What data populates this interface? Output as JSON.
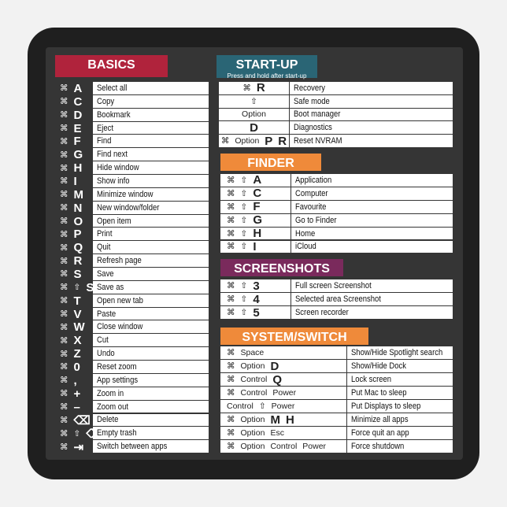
{
  "sections": [
    {
      "title": "BASICS",
      "rows": [
        {
          "keys": [
            "⌘",
            "A"
          ],
          "action": "Select all"
        },
        {
          "keys": [
            "⌘",
            "C"
          ],
          "action": "Copy"
        },
        {
          "keys": [
            "⌘",
            "D"
          ],
          "action": "Bookmark"
        },
        {
          "keys": [
            "⌘",
            "E"
          ],
          "action": "Eject"
        },
        {
          "keys": [
            "⌘",
            "F"
          ],
          "action": "Find"
        },
        {
          "keys": [
            "⌘",
            "G"
          ],
          "action": "Find next"
        },
        {
          "keys": [
            "⌘",
            "H"
          ],
          "action": "Hide window"
        },
        {
          "keys": [
            "⌘",
            "I"
          ],
          "action": "Show info"
        },
        {
          "keys": [
            "⌘",
            "M"
          ],
          "action": "Minimize window"
        },
        {
          "keys": [
            "⌘",
            "N"
          ],
          "action": "New window/folder"
        },
        {
          "keys": [
            "⌘",
            "O"
          ],
          "action": "Open item"
        },
        {
          "keys": [
            "⌘",
            "P"
          ],
          "action": "Print"
        },
        {
          "keys": [
            "⌘",
            "Q"
          ],
          "action": "Quit"
        },
        {
          "keys": [
            "⌘",
            "R"
          ],
          "action": "Refresh page"
        },
        {
          "keys": [
            "⌘",
            "S"
          ],
          "action": "Save"
        },
        {
          "keys": [
            "⌘",
            "⇧",
            "S"
          ],
          "action": "Save as"
        },
        {
          "keys": [
            "⌘",
            "T"
          ],
          "action": "Open new tab"
        },
        {
          "keys": [
            "⌘",
            "V"
          ],
          "action": "Paste"
        },
        {
          "keys": [
            "⌘",
            "W"
          ],
          "action": "Close window"
        },
        {
          "keys": [
            "⌘",
            "X"
          ],
          "action": "Cut"
        },
        {
          "keys": [
            "⌘",
            "Z"
          ],
          "action": "Undo"
        },
        {
          "keys": [
            "⌘",
            "0"
          ],
          "action": "Reset zoom"
        },
        {
          "keys": [
            "⌘",
            ","
          ],
          "action": "App settings"
        },
        {
          "keys": [
            "⌘",
            "+"
          ],
          "action": "Zoom in"
        },
        {
          "keys": [
            "⌘",
            "–"
          ],
          "action": "Zoom out"
        },
        {
          "keys": [
            "⌘",
            "⌫"
          ],
          "action": "Delete"
        },
        {
          "keys": [
            "⌘",
            "⇧",
            "⌫"
          ],
          "action": "Empty trash"
        },
        {
          "keys": [
            "⌘",
            "⇥"
          ],
          "action": "Switch between apps"
        }
      ]
    },
    {
      "title": "START-UP",
      "subtitle": "Press and hold after start-up",
      "rows": [
        {
          "keys": [
            "⌘",
            "R"
          ],
          "action": "Recovery"
        },
        {
          "keys": [
            "⇧"
          ],
          "action": "Safe mode"
        },
        {
          "keys": [
            "Option"
          ],
          "action": "Boot manager"
        },
        {
          "keys": [
            "D"
          ],
          "action": "Diagnostics"
        },
        {
          "keys": [
            "⌘",
            "Option",
            "P",
            "R"
          ],
          "action": "Reset NVRAM"
        }
      ]
    },
    {
      "title": "FINDER",
      "rows": [
        {
          "keys": [
            "⌘",
            "⇧",
            "A"
          ],
          "action": "Application"
        },
        {
          "keys": [
            "⌘",
            "⇧",
            "C"
          ],
          "action": "Computer"
        },
        {
          "keys": [
            "⌘",
            "⇧",
            "F"
          ],
          "action": "Favourite"
        },
        {
          "keys": [
            "⌘",
            "⇧",
            "G"
          ],
          "action": "Go to Finder"
        },
        {
          "keys": [
            "⌘",
            "⇧",
            "H"
          ],
          "action": "Home"
        },
        {
          "keys": [
            "⌘",
            "⇧",
            "I"
          ],
          "action": "iCloud"
        }
      ]
    },
    {
      "title": "SCREENSHOTS",
      "rows": [
        {
          "keys": [
            "⌘",
            "⇧",
            "3"
          ],
          "action": "Full screen Screenshot"
        },
        {
          "keys": [
            "⌘",
            "⇧",
            "4"
          ],
          "action": "Selected area Screenshot"
        },
        {
          "keys": [
            "⌘",
            "⇧",
            "5"
          ],
          "action": "Screen recorder"
        }
      ]
    },
    {
      "title": "SYSTEM/SWITCH",
      "rows": [
        {
          "keys": [
            "⌘",
            "Space"
          ],
          "action": "Show/Hide Spotlight search"
        },
        {
          "keys": [
            "⌘",
            "Option",
            "D"
          ],
          "action": "Show/Hide Dock"
        },
        {
          "keys": [
            "⌘",
            "Control",
            "Q"
          ],
          "action": "Lock screen"
        },
        {
          "keys": [
            "⌘",
            "Control",
            "Power"
          ],
          "action": "Put Mac to sleep"
        },
        {
          "keys": [
            "Control",
            "⇧",
            "Power"
          ],
          "action": "Put Displays to sleep"
        },
        {
          "keys": [
            "⌘",
            "Option",
            "M",
            "H"
          ],
          "action": "Minimize all apps"
        },
        {
          "keys": [
            "⌘",
            "Option",
            "Esc"
          ],
          "action": "Force quit an app"
        },
        {
          "keys": [
            "⌘",
            "Option",
            "Control",
            "Power"
          ],
          "action": "Force shutdown"
        }
      ]
    }
  ]
}
